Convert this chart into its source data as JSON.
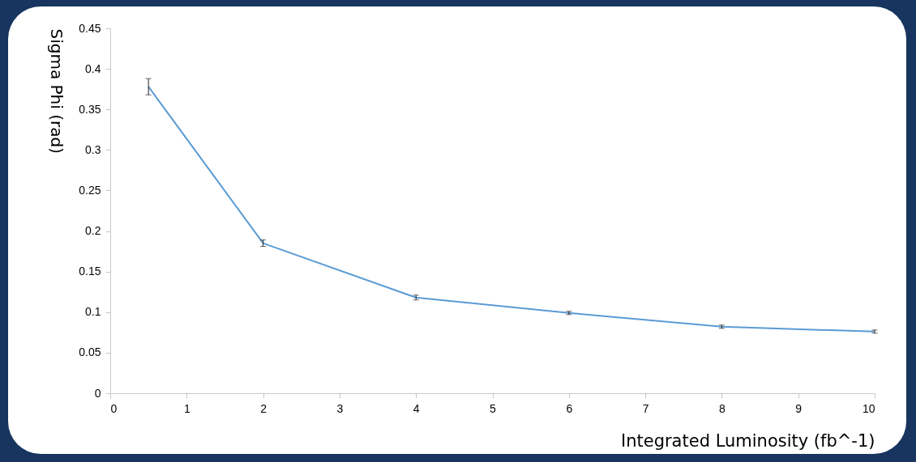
{
  "chart_data": {
    "type": "line",
    "xlabel": "Integrated Luminosity (fb^-1)",
    "ylabel": "Sigma Phi (rad)",
    "x": [
      0.5,
      2,
      4,
      6,
      8,
      10
    ],
    "values": [
      0.378,
      0.185,
      0.118,
      0.099,
      0.082,
      0.076
    ],
    "errors": [
      0.01,
      0.004,
      0.003,
      0.002,
      0.002,
      0.002
    ],
    "color": "#5b9bd5",
    "xlim": [
      0,
      10
    ],
    "xticks": [
      0,
      1,
      2,
      3,
      4,
      5,
      6,
      7,
      8,
      9,
      10
    ],
    "ylim": [
      0,
      0.45
    ],
    "yticks": [
      0,
      0.05,
      0.1,
      0.15,
      0.2,
      0.25,
      0.3,
      0.35,
      0.4,
      0.45
    ],
    "grid": false,
    "legend": false,
    "marker": "none",
    "line_style": "solid"
  }
}
